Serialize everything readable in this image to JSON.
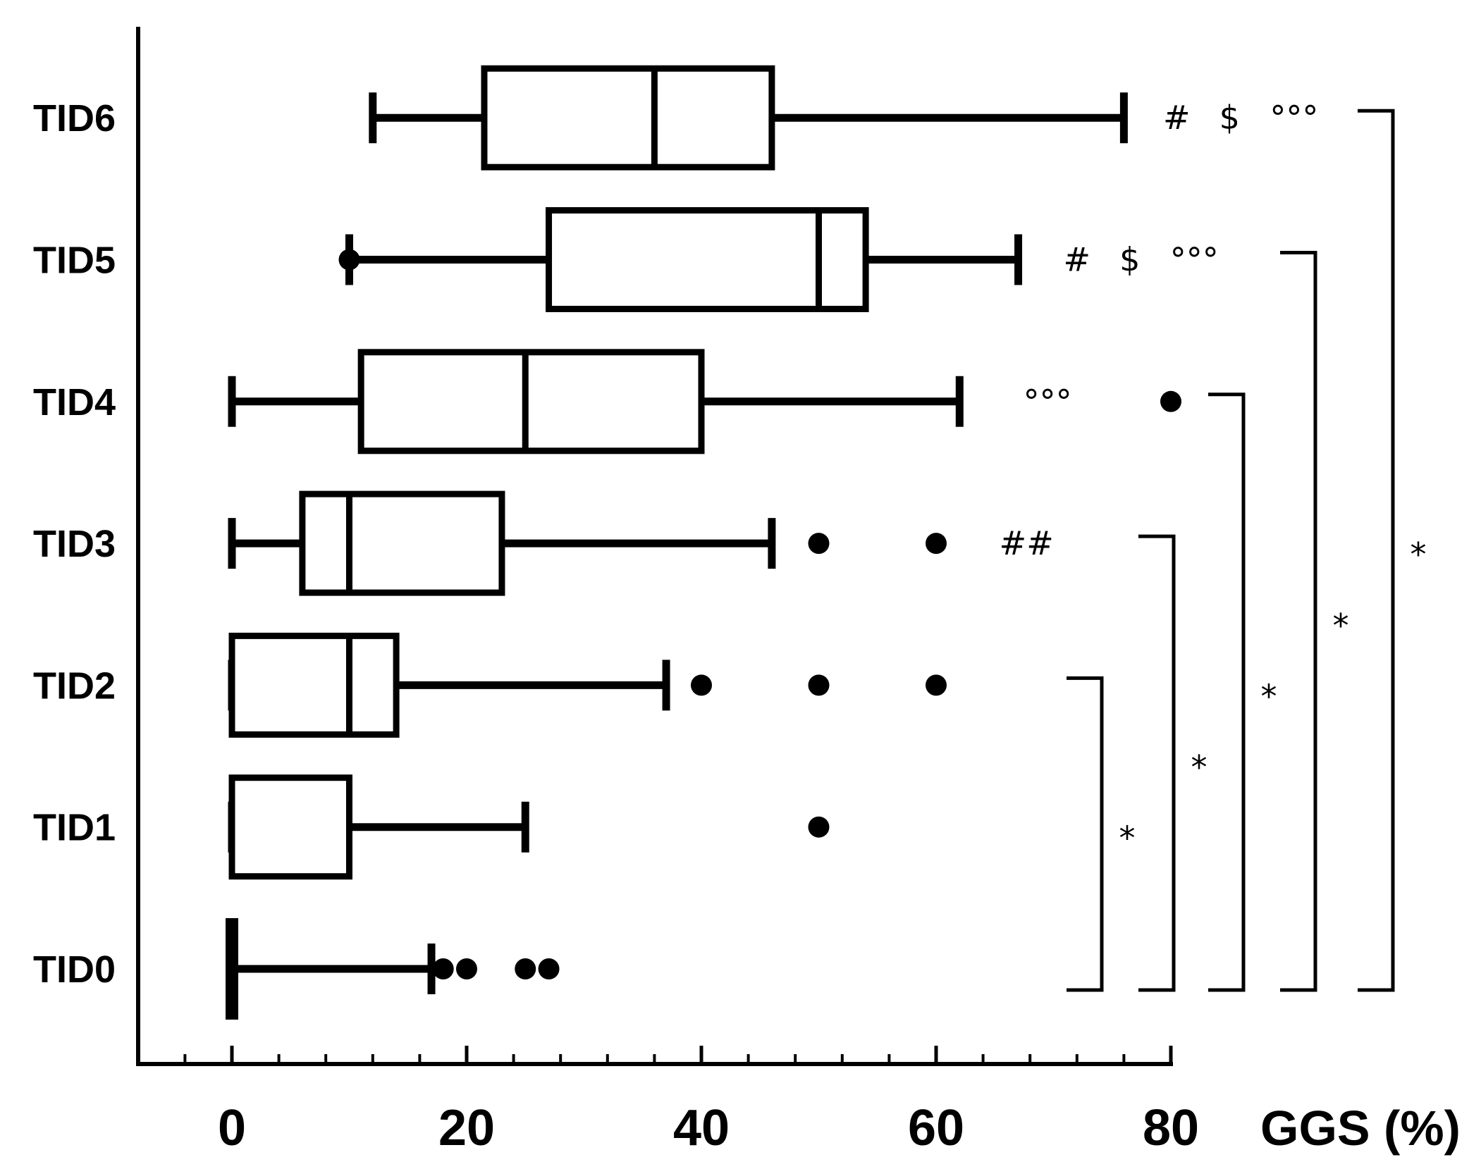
{
  "chart_data": {
    "type": "boxplot",
    "orientation": "horizontal",
    "title": "",
    "xlabel": "GGS (%)",
    "ylabel": "",
    "xlim": [
      -8,
      80
    ],
    "x_ticks": [
      0,
      20,
      40,
      60,
      80
    ],
    "x_minor_step": 4,
    "grid": false,
    "categories": [
      "TID0",
      "TID1",
      "TID2",
      "TID3",
      "TID4",
      "TID5",
      "TID6"
    ],
    "boxes": [
      {
        "name": "TID0",
        "min": 0,
        "q1": 0,
        "median": 0,
        "q3": 0,
        "max": 17,
        "outliers": [
          18,
          20,
          25,
          27
        ]
      },
      {
        "name": "TID1",
        "min": 0,
        "q1": 0,
        "median": 0,
        "q3": 10,
        "max": 25,
        "outliers": [
          50
        ]
      },
      {
        "name": "TID2",
        "min": 0,
        "q1": 0,
        "median": 10,
        "q3": 14,
        "max": 37,
        "outliers": [
          40,
          50,
          60
        ]
      },
      {
        "name": "TID3",
        "min": 0,
        "q1": 6,
        "median": 10,
        "q3": 23,
        "max": 46,
        "outliers": [
          50,
          60
        ]
      },
      {
        "name": "TID4",
        "min": 0,
        "q1": 11,
        "median": 25,
        "q3": 40,
        "max": 62,
        "outliers": [
          80
        ]
      },
      {
        "name": "TID5",
        "min": 10,
        "q1": 27,
        "median": 50,
        "q3": 54,
        "max": 67,
        "outliers": [
          10
        ]
      },
      {
        "name": "TID6",
        "min": 12,
        "q1": 21.5,
        "median": 36,
        "q3": 46,
        "max": 76,
        "outliers": []
      }
    ],
    "annotations": [
      {
        "category": "TID6",
        "text": "#",
        "x": 80.5
      },
      {
        "category": "TID6",
        "text": "$",
        "x": 85
      },
      {
        "category": "TID6",
        "text": "°°°",
        "x": 90.5
      },
      {
        "category": "TID5",
        "text": "#",
        "x": 72
      },
      {
        "category": "TID5",
        "text": "$",
        "x": 76.5
      },
      {
        "category": "TID5",
        "text": "°°°",
        "x": 82
      },
      {
        "category": "TID4",
        "text": "°°°",
        "x": 69.5
      },
      {
        "category": "TID3",
        "text": "##",
        "x": 67.7
      }
    ],
    "brackets": [
      {
        "from": "TID0",
        "to": "TID2",
        "label": "*"
      },
      {
        "from": "TID0",
        "to": "TID3",
        "label": "*"
      },
      {
        "from": "TID0",
        "to": "TID4",
        "label": "*"
      },
      {
        "from": "TID0",
        "to": "TID5",
        "label": "*"
      },
      {
        "from": "TID0",
        "to": "TID6",
        "label": "*"
      }
    ]
  }
}
